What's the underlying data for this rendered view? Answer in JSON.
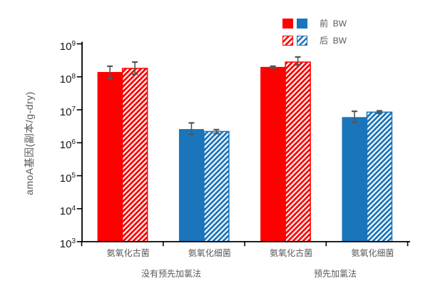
{
  "colors": {
    "archaea_red": "#fe0000",
    "bacteria_blue": "#1b75bb",
    "error_bar": "#555555",
    "axis": "#000000",
    "label_gray": "#595959"
  },
  "legend": {
    "rows": [
      {
        "label": "前  BW",
        "pattern": "solid"
      },
      {
        "label": "后  BW",
        "pattern": "hatched"
      }
    ]
  },
  "chart_data": {
    "type": "bar",
    "scale": "log",
    "title": "",
    "xlabel": "",
    "ylabel": "amoA基因(副本/g-dry)",
    "ylim": [
      1000,
      1000000000
    ],
    "y_tick_exponents": [
      9,
      8,
      7,
      6,
      5,
      4,
      3
    ],
    "grid": false,
    "legend_position": "top-right",
    "categories": [
      "氨氧化古菌",
      "氨氧化细菌",
      "氨氧化古菌",
      "氨氧化细菌"
    ],
    "category_colors": [
      "#fe0000",
      "#1b75bb",
      "#fe0000",
      "#1b75bb"
    ],
    "groups": [
      {
        "label": "没有预先加氯法",
        "category_indexes": [
          0,
          1
        ]
      },
      {
        "label": "预先加氯法",
        "category_indexes": [
          2,
          3
        ]
      }
    ],
    "series": [
      {
        "name": "前 BW",
        "pattern": "solid",
        "values": [
          140000000.0,
          2600000.0,
          200000000.0,
          6000000.0
        ],
        "err_hi": [
          210000000.0,
          4000000.0,
          210000000.0,
          9000000.0
        ],
        "err_lo": [
          90000000.0,
          1800000.0,
          185000000.0,
          4200000.0
        ]
      },
      {
        "name": "后 BW",
        "pattern": "hatched",
        "values": [
          180000000.0,
          2200000.0,
          280000000.0,
          8500000.0
        ],
        "err_hi": [
          280000000.0,
          2500000.0,
          400000000.0,
          9300000.0
        ],
        "err_lo": [
          120000000.0,
          1900000.0,
          230000000.0,
          7800000.0
        ]
      }
    ]
  }
}
